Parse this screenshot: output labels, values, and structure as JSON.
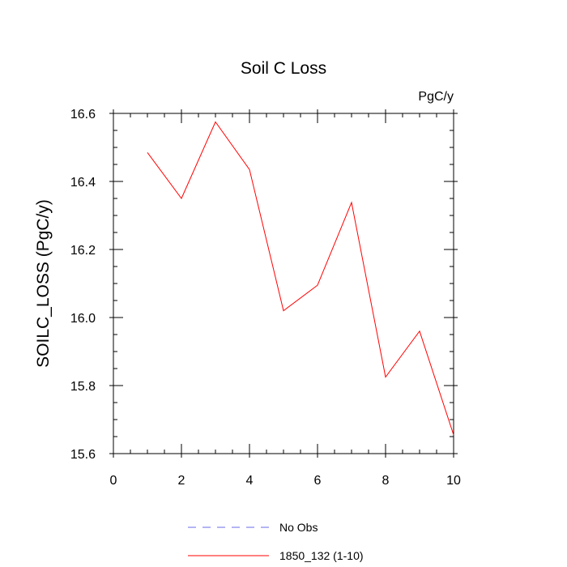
{
  "chart_data": {
    "type": "line",
    "title": "Soil C Loss",
    "units_label": "PgC/y",
    "xlabel": "",
    "ylabel": "SOILC_LOSS  (PgC/y)",
    "xlim": [
      0,
      10
    ],
    "ylim": [
      15.6,
      16.6
    ],
    "x_major_ticks": [
      0,
      2,
      4,
      6,
      8,
      10
    ],
    "x_tick_labels": [
      "0",
      "2",
      "4",
      "6",
      "8",
      "10"
    ],
    "y_major_ticks": [
      15.6,
      15.8,
      16.0,
      16.2,
      16.4,
      16.6
    ],
    "y_tick_labels": [
      "15.6",
      "15.8",
      "16.0",
      "16.2",
      "16.4",
      "16.6"
    ],
    "grid": false,
    "legend_position": "bottom",
    "series": [
      {
        "name": "No Obs",
        "color": "#6a6ae8",
        "style": "dashed",
        "x": [],
        "y": []
      },
      {
        "name": "1850_132 (1-10)",
        "color": "#ff0000",
        "style": "solid",
        "x": [
          1,
          2,
          3,
          4,
          5,
          6,
          7,
          8,
          9,
          10
        ],
        "y": [
          16.485,
          16.35,
          16.575,
          16.435,
          16.02,
          16.095,
          16.338,
          15.825,
          15.96,
          15.655
        ]
      }
    ]
  }
}
